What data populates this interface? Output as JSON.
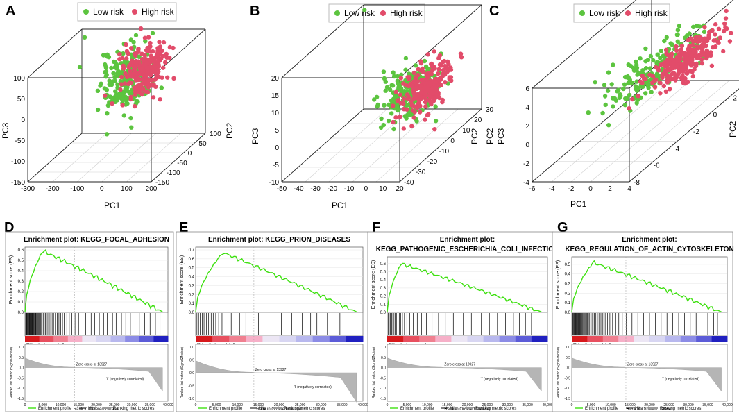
{
  "colors": {
    "low": "#5cc43f",
    "high": "#e24c6a",
    "enrich": "#3ee010",
    "grey": "#9a9a9a"
  },
  "legend": {
    "low": "Low risk",
    "high": "High risk"
  },
  "chart_data": [
    {
      "panel": "A",
      "type": "scatter",
      "xlabel": "PC1",
      "ylabel": "PC2",
      "zlabel": "PC3",
      "x_ticks": [
        "-300",
        "-200",
        "-100",
        "0",
        "100",
        "200"
      ],
      "y_ticks": [
        "-150",
        "-100",
        "-50",
        "0",
        "50",
        "100"
      ],
      "z_ticks": [
        "-150",
        "-100",
        "-50",
        "0",
        "50",
        "100"
      ],
      "xlim": [
        -300,
        200
      ],
      "ylim": [
        -150,
        100
      ],
      "zlim": [
        -150,
        100
      ],
      "series": [
        {
          "name": "Low risk",
          "center": [
            -10,
            -20,
            35
          ],
          "spread": [
            45,
            30,
            35
          ],
          "count": 230,
          "outliers": [
            [
              -280,
              90,
              85
            ]
          ]
        },
        {
          "name": "High risk",
          "center": [
            30,
            10,
            45
          ],
          "spread": [
            40,
            30,
            30
          ],
          "count": 230,
          "outliers": []
        }
      ]
    },
    {
      "panel": "B",
      "type": "scatter",
      "xlabel": "PC1",
      "ylabel": "PC2",
      "zlabel": "PC3",
      "x_ticks": [
        "-50",
        "-40",
        "-30",
        "-20",
        "-10",
        "0",
        "10",
        "20"
      ],
      "y_ticks": [
        "-40",
        "-30",
        "-20",
        "-10",
        "0",
        "10",
        "20",
        "30"
      ],
      "z_ticks": [
        "-10",
        "-5",
        "0",
        "5",
        "10",
        "15",
        "20"
      ],
      "xlim": [
        -50,
        20
      ],
      "ylim": [
        -40,
        30
      ],
      "zlim": [
        -10,
        20
      ],
      "series": [
        {
          "name": "Low risk",
          "center": [
            2,
            -5,
            5
          ],
          "spread": [
            6,
            8,
            3.5
          ],
          "count": 200,
          "outliers": [
            [
              -46,
              25,
              20
            ]
          ]
        },
        {
          "name": "High risk",
          "center": [
            8,
            0,
            5
          ],
          "spread": [
            5,
            8,
            3
          ],
          "count": 230,
          "outliers": []
        }
      ]
    },
    {
      "panel": "C",
      "type": "scatter",
      "xlabel": "PC1",
      "ylabel": "PC2",
      "zlabel": "PC3",
      "x_ticks": [
        "-6",
        "-4",
        "-2",
        "0",
        "2",
        "4"
      ],
      "y_ticks": [
        "-8",
        "-6",
        "-4",
        "-2",
        "0",
        "2",
        "4"
      ],
      "z_ticks": [
        "-4",
        "-2",
        "0",
        "2",
        "4",
        "6"
      ],
      "xlim": [
        -6,
        4
      ],
      "ylim": [
        -8,
        4
      ],
      "zlim": [
        -4,
        6
      ],
      "series": [
        {
          "name": "Low risk",
          "center": [
            -0.5,
            -1,
            1.6
          ],
          "spread": [
            1.2,
            2.0,
            0.9
          ],
          "count": 200,
          "outliers": []
        },
        {
          "name": "High risk",
          "center": [
            1.2,
            0.5,
            1.5
          ],
          "spread": [
            1.0,
            1.8,
            0.6
          ],
          "count": 260,
          "outliers": []
        }
      ]
    },
    {
      "panel": "D",
      "type": "line",
      "title": "Enrichment plot: KEGG_FOCAL_ADHESION",
      "title_line2": "",
      "ylabel_es": "Enrichment score (ES)",
      "ylabel_metric": "Ranked list metric (Signal2Noise)",
      "xlabel": "Rank in Ordered Dataset",
      "es_ticks": [
        "0.0",
        "0.1",
        "0.2",
        "0.3",
        "0.4",
        "0.5",
        "0.6"
      ],
      "es_max": 0.6,
      "peak_es": 0.59,
      "peak_rank": 5000,
      "x_ticks": [
        "0",
        "5,000",
        "10,000",
        "15,000",
        "20,000",
        "25,000",
        "30,000",
        "35,000",
        "40,000"
      ],
      "metric_ticks": [
        "1.0",
        "0.5",
        "0.0",
        "-0.5",
        "-1.0",
        "-1.5"
      ],
      "zero_cross": "Zero cross at 13927",
      "pos_label": "'R' (positively correlated)",
      "neg_label": "'I' (negatively correlated)",
      "hits": [
        200,
        400,
        550,
        700,
        900,
        1050,
        1200,
        1350,
        1500,
        1650,
        1800,
        1950,
        2100,
        2300,
        2450,
        2600,
        2800,
        2950,
        3100,
        3300,
        3500,
        3700,
        3900,
        4100,
        4300,
        4500,
        4800,
        5100,
        5400,
        5700,
        6000,
        6400,
        6800,
        7200,
        7600,
        8000,
        8500,
        9000,
        9500,
        10000,
        10500,
        11000,
        11700,
        12400,
        13100,
        14000,
        15000,
        16200,
        17000,
        18500,
        19500,
        20800,
        22000,
        23000,
        24500,
        25500,
        27000,
        28200,
        29500,
        30800,
        32000,
        33500,
        35000,
        36500,
        37800
      ],
      "legend": [
        "Enrichment profile",
        "Hits",
        "Ranking metric scores"
      ]
    },
    {
      "panel": "E",
      "type": "line",
      "title": "Enrichment plot: KEGG_PRION_DISEASES",
      "title_line2": "",
      "ylabel_es": "Enrichment score (ES)",
      "ylabel_metric": "Ranked list metric (Signal2Noise)",
      "xlabel": "Rank in Ordered Dataset",
      "es_ticks": [
        "0.0",
        "0.1",
        "0.2",
        "0.3",
        "0.4",
        "0.5",
        "0.6",
        "0.7"
      ],
      "es_max": 0.7,
      "peak_es": 0.67,
      "peak_rank": 6500,
      "x_ticks": [
        "0",
        "5,000",
        "10,000",
        "15,000",
        "20,000",
        "25,000",
        "30,000",
        "35,000",
        "40,000"
      ],
      "metric_ticks": [
        "1.0",
        "0.5",
        "0.0",
        "-0.5",
        "-1.0"
      ],
      "zero_cross": "Zero cross at 13927",
      "pos_label": "'R' (positively correlated)",
      "neg_label": "'I' (negatively correlated)",
      "hits": [
        300,
        700,
        1100,
        1600,
        2000,
        2600,
        3100,
        3700,
        4200,
        4800,
        5500,
        6300,
        8500,
        10500,
        12000,
        15000,
        17500,
        20500,
        23000,
        25500,
        27500,
        29000,
        31500,
        34500
      ],
      "legend": [
        "Enrichment profile",
        "Hits",
        "Ranking metric scores"
      ]
    },
    {
      "panel": "F",
      "type": "line",
      "title": "Enrichment plot:",
      "title_line2": "KEGG_PATHOGENIC_ESCHERICHIA_COLI_INFECTION",
      "ylabel_es": "Enrichment score (ES)",
      "ylabel_metric": "Ranked list metric (Signal2Noise)",
      "xlabel": "Rank in Ordered Dataset",
      "es_ticks": [
        "0.0",
        "0.1",
        "0.2",
        "0.3",
        "0.4",
        "0.5",
        "0.6"
      ],
      "es_max": 0.65,
      "peak_es": 0.6,
      "peak_rank": 3500,
      "x_ticks": [
        "0",
        "5,000",
        "10,000",
        "15,000",
        "20,000",
        "25,000",
        "30,000",
        "35,000",
        "40,000"
      ],
      "metric_ticks": [
        "1.0",
        "0.5",
        "0.0",
        "-0.5",
        "-1.0",
        "-1.5"
      ],
      "zero_cross": "Zero cross at 13927",
      "pos_label": "'R' (positively correlated)",
      "neg_label": "'I' (negatively correlated)",
      "hits": [
        250,
        500,
        800,
        1100,
        1400,
        1700,
        2000,
        2300,
        2700,
        3000,
        3400,
        3800,
        4300,
        4900,
        5600,
        6500,
        7500,
        8600,
        9800,
        11200,
        12800,
        14500,
        16500,
        19000,
        21000,
        23500,
        25500,
        27500,
        29500,
        31500,
        33000,
        34500,
        36000
      ],
      "legend": [
        "Enrichment profile",
        "Hits",
        "Ranking metric scores"
      ]
    },
    {
      "panel": "G",
      "type": "line",
      "title": "Enrichment plot:",
      "title_line2": "KEGG_REGULATION_OF_ACTIN_CYTOSKELETON",
      "ylabel_es": "Enrichment score (ES)",
      "ylabel_metric": "Ranked list metric (Signal2Noise)",
      "xlabel": "Rank in Ordered Dataset",
      "es_ticks": [
        "0.0",
        "0.1",
        "0.2",
        "0.3",
        "0.4",
        "0.5"
      ],
      "es_max": 0.55,
      "peak_es": 0.52,
      "peak_rank": 5500,
      "x_ticks": [
        "0",
        "5,000",
        "10,000",
        "15,000",
        "20,000",
        "25,000",
        "30,000",
        "35,000",
        "40,000"
      ],
      "metric_ticks": [
        "1.0",
        "0.5",
        "0.0",
        "-0.5",
        "-1.0",
        "-1.5"
      ],
      "zero_cross": "Zero cross at 13927",
      "pos_label": "'R' (positively correlated)",
      "neg_label": "'I' (negatively correlated)",
      "hits": [
        150,
        300,
        450,
        600,
        750,
        900,
        1050,
        1200,
        1350,
        1500,
        1650,
        1800,
        1950,
        2100,
        2250,
        2400,
        2600,
        2800,
        3000,
        3200,
        3400,
        3600,
        3800,
        4000,
        4300,
        4600,
        4900,
        5200,
        5500,
        5800,
        6200,
        6600,
        7000,
        7500,
        8000,
        8600,
        9200,
        9800,
        10500,
        11300,
        12100,
        13000,
        14000,
        15500,
        17000,
        18500,
        20000,
        21500,
        23000,
        24500,
        26000,
        27500,
        29000,
        30500,
        32000,
        33500,
        35000,
        36500,
        37500
      ],
      "legend": [
        "Enrichment profile",
        "Hits",
        "Ranking metric scores"
      ]
    }
  ]
}
